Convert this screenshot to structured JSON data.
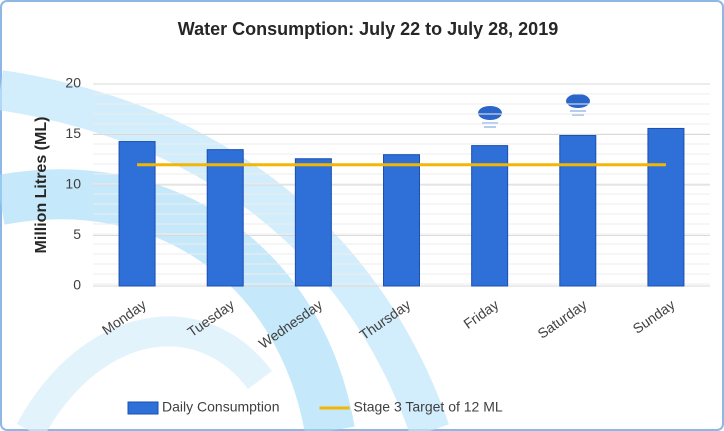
{
  "chart_data": {
    "type": "bar",
    "title": "Water Consumption: July 22 to July 28, 2019",
    "y_label": "Million Litres (ML)",
    "categories": [
      "Monday",
      "Tuesday",
      "Wednesday",
      "Thursday",
      "Friday",
      "Saturday",
      "Sunday"
    ],
    "series": [
      {
        "name": "Daily Consumption",
        "type": "bar",
        "color": "#2e6fd8",
        "values": [
          14.3,
          13.5,
          12.6,
          13.0,
          13.9,
          14.9,
          15.6
        ]
      },
      {
        "name": "Stage 3 Target of 12 ML",
        "type": "line",
        "color": "#f2b705",
        "values": [
          12,
          12,
          12,
          12,
          12,
          12,
          12
        ]
      }
    ],
    "ylim": [
      0,
      20
    ],
    "yticks": [
      0,
      5,
      10,
      15,
      20
    ],
    "grid": true,
    "legend": "bottom"
  }
}
